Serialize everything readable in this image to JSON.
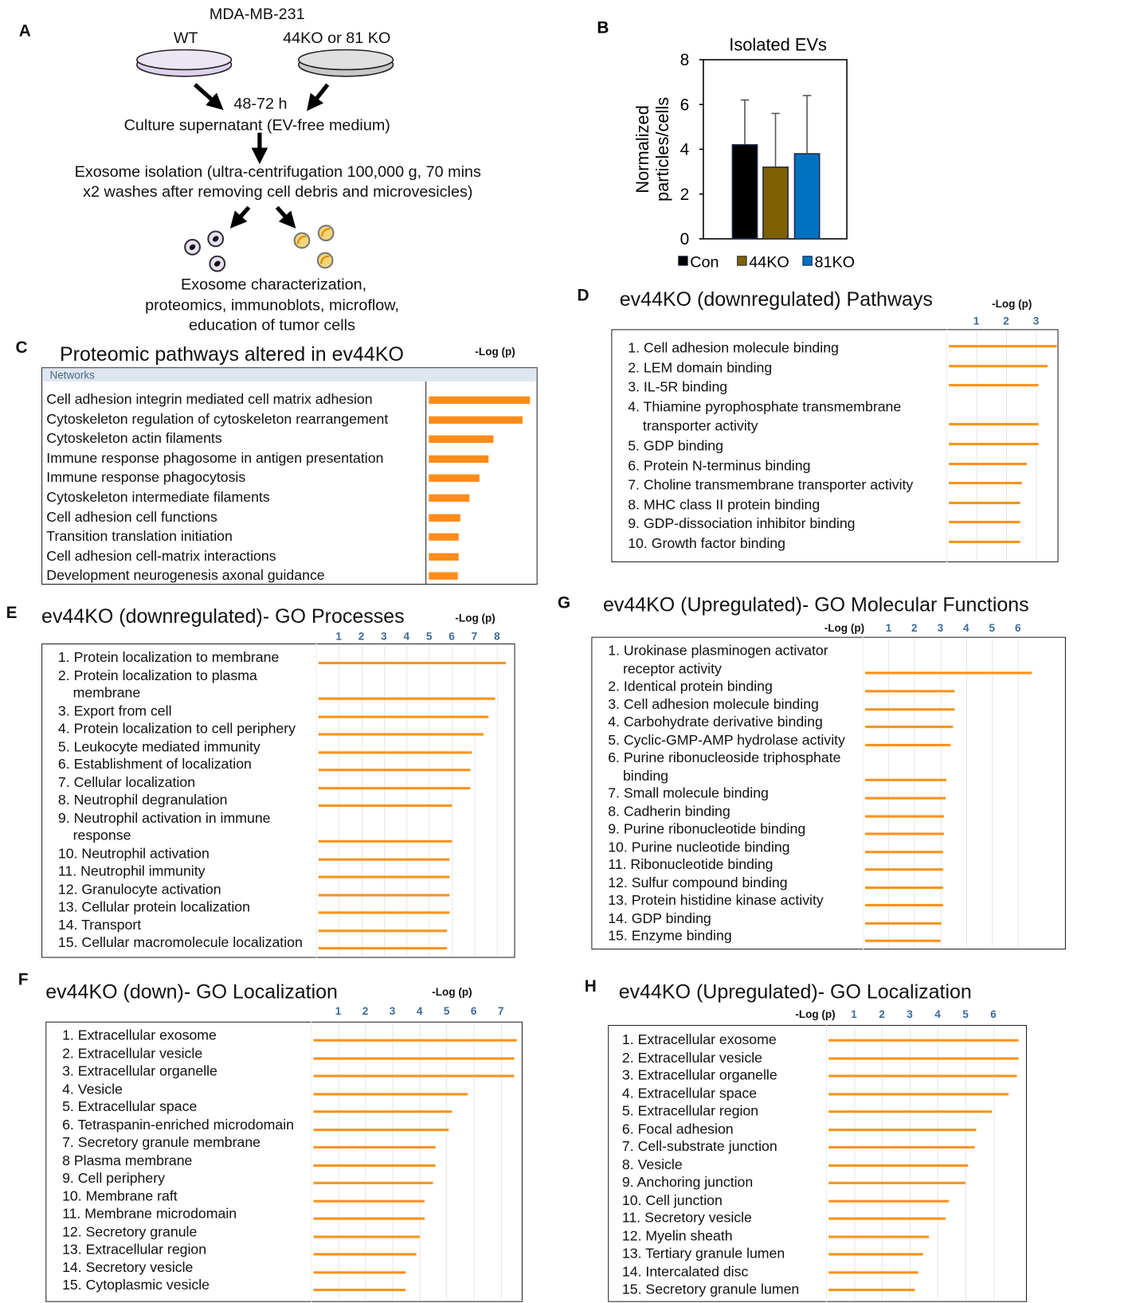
{
  "diagram": {
    "panel": "A",
    "cell_line": "MDA-MB-231",
    "wt": "WT",
    "ko": "44KO or 81 KO",
    "time": "48-72 h",
    "supernatant": "Culture supernatant (EV-free medium)",
    "isolation": [
      "Exosome isolation (ultra-centrifugation 100,000 g, 70 mins",
      "x2 washes after removing cell debris and microvesicles)"
    ],
    "analysis": [
      "Exosome characterization,",
      "proteomics, immunoblots, microflow,",
      "education of tumor cells"
    ]
  },
  "chart_data": [
    {
      "panel": "B",
      "type": "bar",
      "title": "Isolated EVs",
      "ylabel": [
        "Normalized",
        "particles/cells"
      ],
      "categories": [
        "Con",
        "44KO",
        "81KO"
      ],
      "values": [
        4.2,
        3.2,
        3.8
      ],
      "errors": [
        2.0,
        2.4,
        2.6
      ],
      "colors": [
        "#000000",
        "#7f6000",
        "#0070c0"
      ],
      "ylim": [
        0,
        8
      ],
      "yticks": [
        0,
        2,
        4,
        6,
        8
      ],
      "legend": "bottom"
    },
    {
      "panel": "C",
      "type": "barh",
      "title": "Proteomic pathways altered in ev44KO",
      "axis_label": "-Log (p)",
      "header": "Networks",
      "categories": [
        "Cell adhesion integrin mediated cell matrix adhesion",
        "Cytoskeleton regulation of cytoskeleton rearrangement",
        "Cytoskeleton actin filaments",
        "Immune response phagosome in antigen presentation",
        "Immune response phagocytosis",
        "Cytoskeleton intermediate filaments",
        "Cell adhesion cell functions",
        "Transition translation initiation",
        "Cell adhesion cell-matrix interactions",
        "Development neurogenesis axonal guidance"
      ],
      "values": [
        9.5,
        8.8,
        6.1,
        5.6,
        4.8,
        3.8,
        3.0,
        2.8,
        2.8,
        2.7
      ],
      "xlim": [
        0,
        10
      ],
      "color": "#ff8c1a"
    },
    {
      "panel": "D",
      "type": "barh",
      "title": "ev44KO (downregulated) Pathways",
      "axis_label": "-Log (p)",
      "categories": [
        "1. Cell adhesion molecule binding",
        "2. LEM domain binding",
        "3. IL-5R binding",
        "4. Thiamine pyrophosphate transmembrane transporter activity",
        "5. GDP binding",
        "6. Protein N-terminus binding",
        "7. Choline transmembrane transporter activity",
        "8. MHC class II protein binding",
        "9. GDP-dissociation inhibitor binding",
        "10. Growth factor binding"
      ],
      "values": [
        3.6,
        3.3,
        3.0,
        3.0,
        3.0,
        2.6,
        2.45,
        2.4,
        2.4,
        2.4
      ],
      "xlim": [
        0,
        3.75
      ],
      "xticks": [
        1,
        2,
        3
      ],
      "grid": true,
      "color": "#f7941d"
    },
    {
      "panel": "E",
      "type": "barh",
      "title": "ev44KO (downregulated)- GO Processes",
      "axis_label": "-Log (p)",
      "categories": [
        "1. Protein localization to membrane",
        "2. Protein localization to plasma membrane",
        "3. Export from cell",
        "4. Protein localization to cell periphery",
        "5. Leukocyte mediated immunity",
        "6. Establishment of localization",
        "7. Cellular localization",
        "8. Neutrophil degranulation",
        "9. Neutrophil activation in immune response",
        "10. Neutrophil activation",
        "11. Neutrophil immunity",
        "12. Granulocyte activation",
        "13. Cellular protein localization",
        "14. Transport",
        "15. Cellular macromolecule localization"
      ],
      "values": [
        8.3,
        7.8,
        7.5,
        7.3,
        6.8,
        6.7,
        6.7,
        5.9,
        5.9,
        5.8,
        5.8,
        5.8,
        5.8,
        5.7,
        5.7
      ],
      "xlim": [
        0,
        8.8
      ],
      "xticks": [
        1,
        2,
        3,
        4,
        5,
        6,
        7,
        8
      ],
      "grid": true,
      "color": "#f7941d"
    },
    {
      "panel": "F",
      "type": "barh",
      "title": "ev44KO (down)- GO Localization",
      "axis_label": "-Log (p)",
      "categories": [
        "1. Extracellular exosome",
        "2. Extracellular vesicle",
        "3. Extracellular organelle",
        "4. Vesicle",
        "5. Extracellular space",
        "6. Tetraspanin-enriched microdomain",
        "7. Secretory granule membrane",
        "8 Plasma membrane",
        "9. Cell periphery",
        "10. Membrane raft",
        "11. Membrane microdomain",
        "12. Secretory granule",
        "13. Extracellular region",
        "14. Secretory vesicle",
        "15. Cytoplasmic vesicle"
      ],
      "values": [
        7.5,
        7.4,
        7.4,
        5.7,
        5.1,
        5.0,
        4.5,
        4.5,
        4.4,
        4.1,
        4.1,
        3.9,
        3.8,
        3.4,
        3.4
      ],
      "xlim": [
        0,
        7.8
      ],
      "xticks": [
        1,
        2,
        3,
        4,
        5,
        6,
        7
      ],
      "grid": true,
      "color": "#f7941d"
    },
    {
      "panel": "G",
      "type": "barh",
      "title": "ev44KO (Upregulated)- GO Molecular Functions",
      "axis_label": "-Log (p)",
      "categories": [
        "1. Urokinase plasminogen activator receptor activity",
        "2. Identical protein binding",
        "3. Cell adhesion molecule binding",
        "4. Carbohydrate derivative binding",
        "5. Cyclic-GMP-AMP hydrolase activity",
        "6. Purine ribonucleoside triphosphate binding",
        "7. Small molecule binding",
        "8. Cadherin binding",
        "9. Purine ribonucleotide binding",
        "10. Purine nucleotide binding",
        "11. Ribonucleotide binding",
        "12. Sulfur compound binding",
        "13. Protein histidine kinase activity",
        "14. GDP binding",
        "15. Enzyme binding"
      ],
      "values": [
        6.45,
        3.45,
        3.45,
        3.4,
        3.3,
        3.15,
        3.1,
        3.05,
        3.05,
        3.0,
        3.0,
        3.0,
        3.0,
        2.95,
        2.9
      ],
      "xlim": [
        0,
        7.85
      ],
      "xticks": [
        1,
        2,
        3,
        4,
        5,
        6
      ],
      "grid": true,
      "color": "#f7941d"
    },
    {
      "panel": "H",
      "type": "barh",
      "title": "ev44KO (Upregulated)- GO Localization",
      "axis_label": "-Log (p)",
      "categories": [
        "1. Extracellular exosome",
        "2. Extracellular vesicle",
        "3. Extracellular organelle",
        "4. Extracellular space",
        "5. Extracellular region",
        "6. Focal adhesion",
        "7. Cell-substrate junction",
        "8. Vesicle",
        "9. Anchoring junction",
        "10. Cell junction",
        "11. Secretory vesicle",
        "12. Myelin sheath",
        "13. Tertiary granule lumen",
        "14. Intercalated disc",
        "15. Secretory granule lumen"
      ],
      "values": [
        6.8,
        6.8,
        6.75,
        6.45,
        5.85,
        5.3,
        5.25,
        5.0,
        4.9,
        4.3,
        4.2,
        3.6,
        3.4,
        3.2,
        3.1
      ],
      "xlim": [
        0,
        7.2
      ],
      "xticks": [
        1,
        2,
        3,
        4,
        5,
        6
      ],
      "grid": true,
      "color": "#f7941d"
    }
  ]
}
